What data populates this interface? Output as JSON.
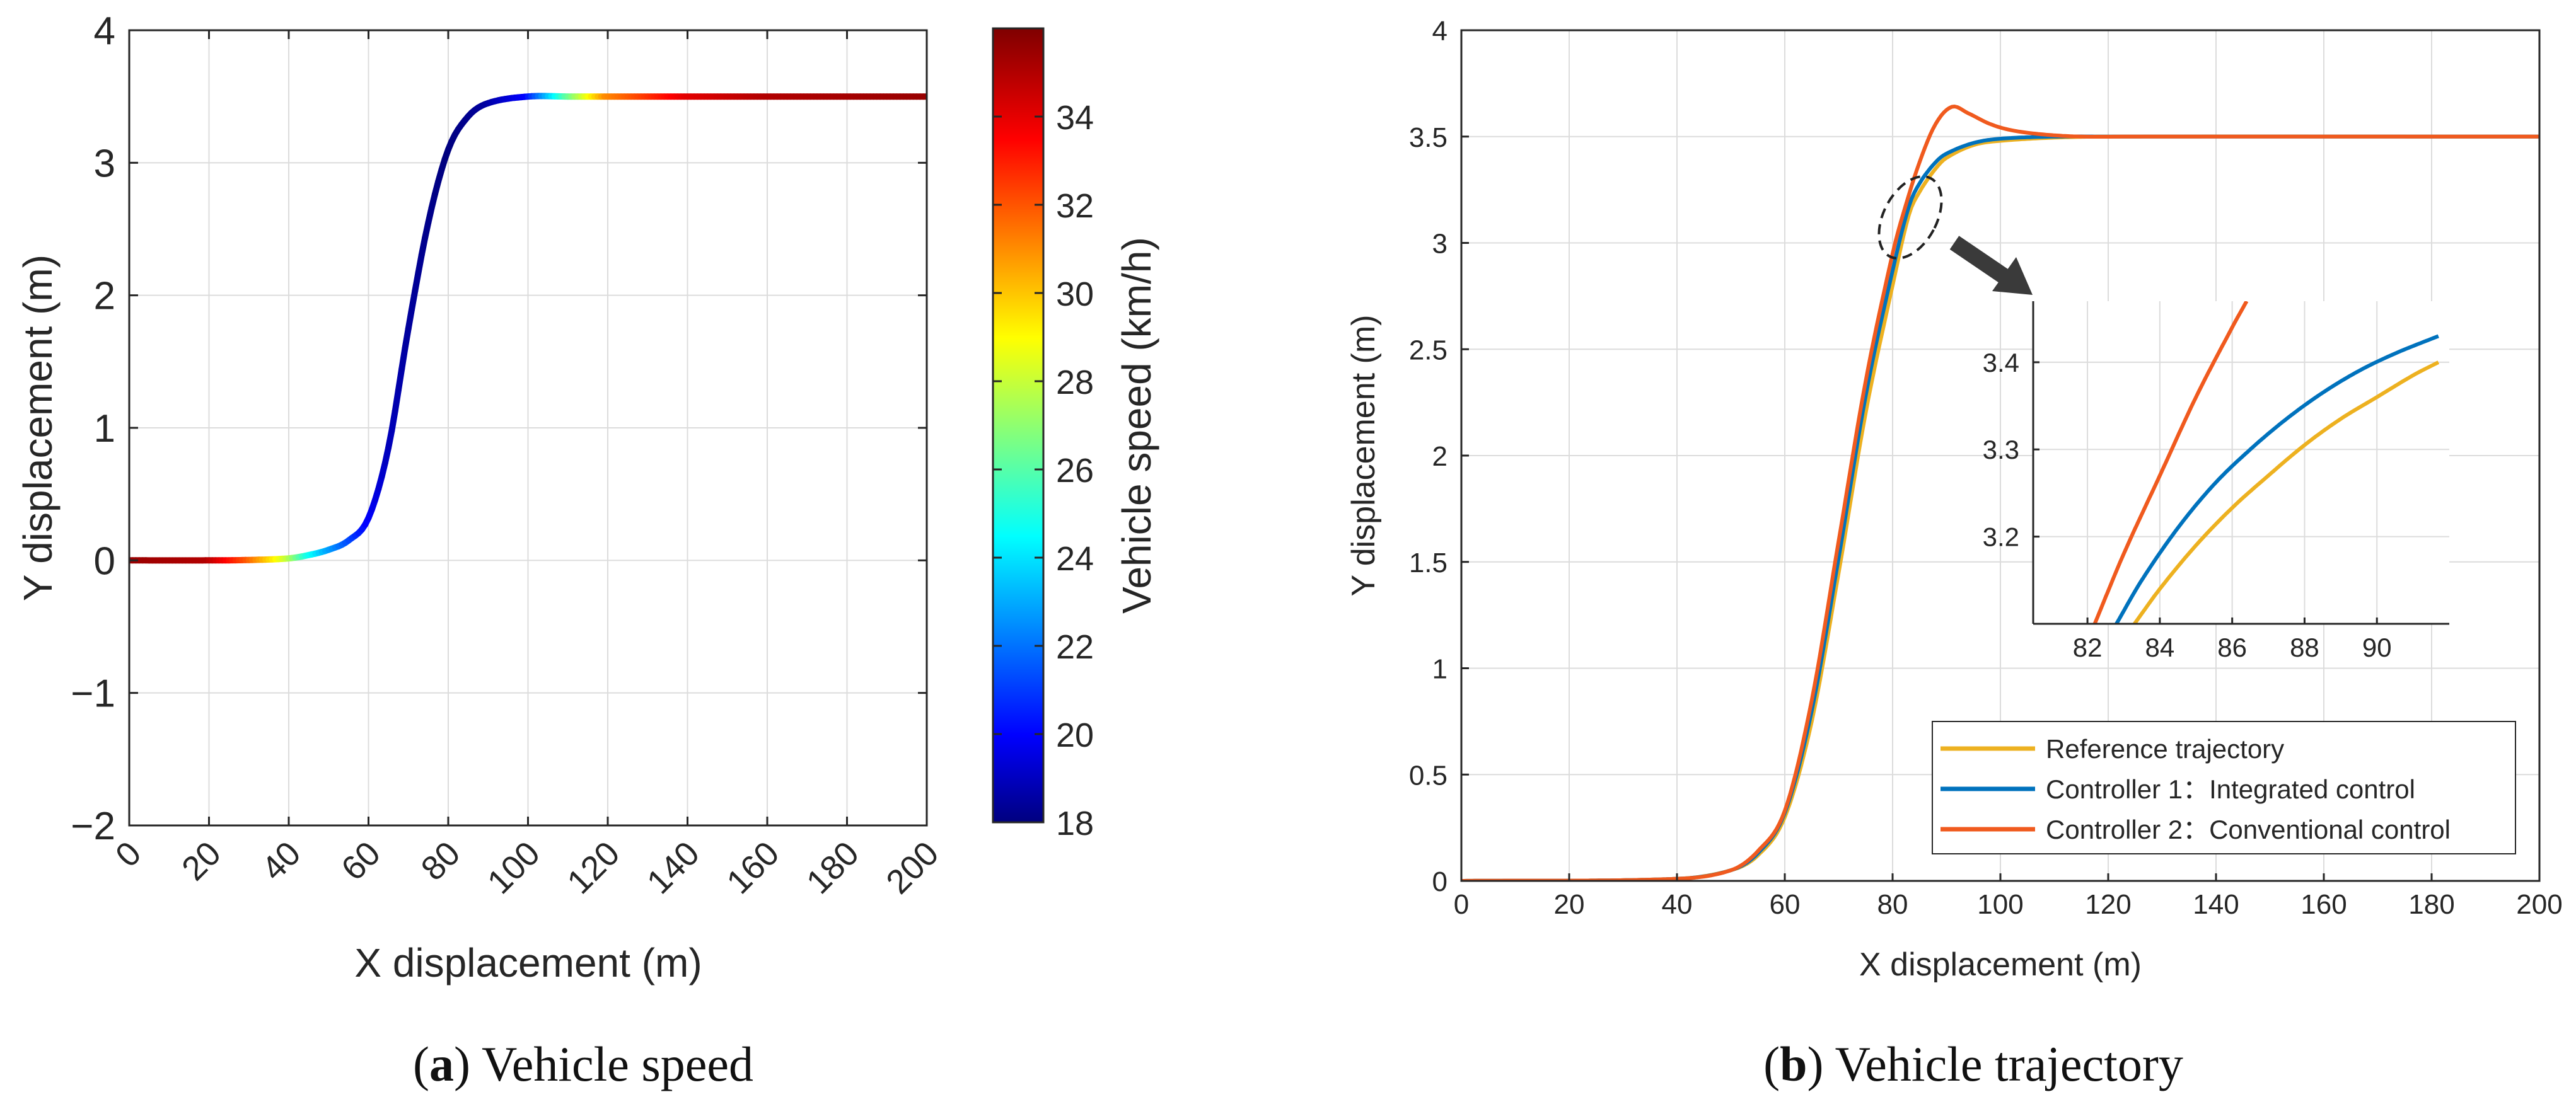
{
  "chart_data": [
    {
      "id": "a",
      "type": "line",
      "caption": {
        "letter": "a",
        "text": "Vehicle speed"
      },
      "xlabel": "X displacement (m)",
      "ylabel": "Y displacement (m)",
      "xlim": [
        0,
        200
      ],
      "ylim": [
        -2,
        4
      ],
      "xticks": [
        "0",
        "20",
        "40",
        "60",
        "80",
        "100",
        "120",
        "140",
        "160",
        "180",
        "200"
      ],
      "yticks": [
        "4",
        "3",
        "2",
        "1",
        "0",
        "−1",
        "−2"
      ],
      "grid": true,
      "colorbar": {
        "label": "Vehicle speed (km/h)",
        "range": [
          18,
          36
        ],
        "ticks": [
          "34",
          "32",
          "30",
          "28",
          "26",
          "24",
          "22",
          "20",
          "18"
        ],
        "colormap": [
          "#00007f",
          "#0000ff",
          "#00ffff",
          "#ffff00",
          "#ff0000",
          "#7f0000"
        ]
      },
      "series": [
        {
          "x": [
            0,
            20,
            30,
            40,
            45,
            50,
            55,
            60,
            65,
            70,
            75,
            80,
            85,
            90,
            100,
            110,
            120,
            140,
            160,
            200
          ],
          "y": [
            0,
            0,
            0.003,
            0.015,
            0.04,
            0.08,
            0.15,
            0.32,
            0.85,
            1.75,
            2.55,
            3.1,
            3.35,
            3.45,
            3.5,
            3.5,
            3.5,
            3.5,
            3.5,
            3.5
          ],
          "speed": [
            35.5,
            35,
            32,
            28,
            25,
            23,
            21.5,
            20,
            19,
            18.5,
            18.2,
            18,
            18.2,
            18.5,
            20,
            26,
            31,
            34,
            35,
            35.5
          ]
        }
      ]
    },
    {
      "id": "b",
      "type": "line",
      "caption": {
        "letter": "b",
        "text": "Vehicle trajectory"
      },
      "xlabel": "X displacement (m)",
      "ylabel": "Y displacement (m)",
      "xlim": [
        0,
        200
      ],
      "ylim": [
        0,
        4
      ],
      "xticks": [
        "0",
        "20",
        "40",
        "60",
        "80",
        "100",
        "120",
        "140",
        "160",
        "180",
        "200"
      ],
      "yticks": [
        "4",
        "3.5",
        "3",
        "2.5",
        "2",
        "1.5",
        "1",
        "0.5",
        "0"
      ],
      "grid": true,
      "legend": {
        "placement": "bottom-right",
        "entries": [
          {
            "label": "Reference trajectory",
            "color": "#edb120"
          },
          {
            "label": "Controller 1：Integrated control",
            "color": "#0072bd"
          },
          {
            "label": "Controller 2：Conventional control",
            "color": "#f05a1e"
          }
        ]
      },
      "series": [
        {
          "color": "#edb120",
          "x": [
            0,
            40,
            50,
            55,
            60,
            65,
            70,
            75,
            80,
            83,
            85,
            88,
            90,
            95,
            100,
            110,
            120,
            200
          ],
          "y": [
            0,
            0.01,
            0.05,
            0.12,
            0.3,
            0.75,
            1.45,
            2.2,
            2.8,
            3.13,
            3.24,
            3.35,
            3.4,
            3.46,
            3.48,
            3.495,
            3.5,
            3.5
          ]
        },
        {
          "color": "#0072bd",
          "x": [
            0,
            40,
            50,
            55,
            60,
            65,
            70,
            75,
            80,
            83,
            85,
            88,
            90,
            95,
            100,
            110,
            120,
            200
          ],
          "y": [
            0,
            0.01,
            0.05,
            0.13,
            0.32,
            0.8,
            1.52,
            2.28,
            2.87,
            3.17,
            3.28,
            3.38,
            3.42,
            3.47,
            3.49,
            3.5,
            3.5,
            3.5
          ]
        },
        {
          "color": "#f05a1e",
          "x": [
            0,
            40,
            50,
            55,
            60,
            65,
            70,
            75,
            80,
            82,
            85,
            88,
            91,
            94,
            98,
            102,
            108,
            115,
            125,
            200
          ],
          "y": [
            0,
            0.01,
            0.05,
            0.14,
            0.33,
            0.85,
            1.6,
            2.35,
            2.95,
            3.14,
            3.38,
            3.56,
            3.64,
            3.61,
            3.56,
            3.53,
            3.51,
            3.5,
            3.5,
            3.5
          ]
        }
      ],
      "inset": {
        "xlim": [
          80.5,
          92
        ],
        "ylim": [
          3.1,
          3.47
        ],
        "xticks": [
          "82",
          "84",
          "86",
          "88",
          "90"
        ],
        "xtick_values": [
          82,
          84,
          86,
          88,
          90
        ],
        "yticks": [
          "3.4",
          "3.3",
          "3.2"
        ],
        "ytick_values": [
          3.4,
          3.3,
          3.2
        ],
        "series": [
          {
            "color": "#edb120",
            "x": [
              83.3,
              84,
              85,
              86,
              87,
              88,
              89,
              90,
              91,
              91.7
            ],
            "y": [
              3.1,
              3.14,
              3.19,
              3.233,
              3.27,
              3.305,
              3.335,
              3.36,
              3.385,
              3.4
            ]
          },
          {
            "color": "#0072bd",
            "x": [
              82.8,
              83.5,
              84.5,
              85.5,
              86.5,
              87.5,
              88.5,
              89.5,
              90.5,
              91.7
            ],
            "y": [
              3.1,
              3.15,
              3.21,
              3.26,
              3.3,
              3.335,
              3.365,
              3.39,
              3.41,
              3.43
            ]
          },
          {
            "color": "#f05a1e",
            "x": [
              82.2,
              83,
              84,
              85,
              86,
              86.4
            ],
            "y": [
              3.1,
              3.18,
              3.27,
              3.36,
              3.44,
              3.47
            ]
          }
        ]
      }
    }
  ]
}
